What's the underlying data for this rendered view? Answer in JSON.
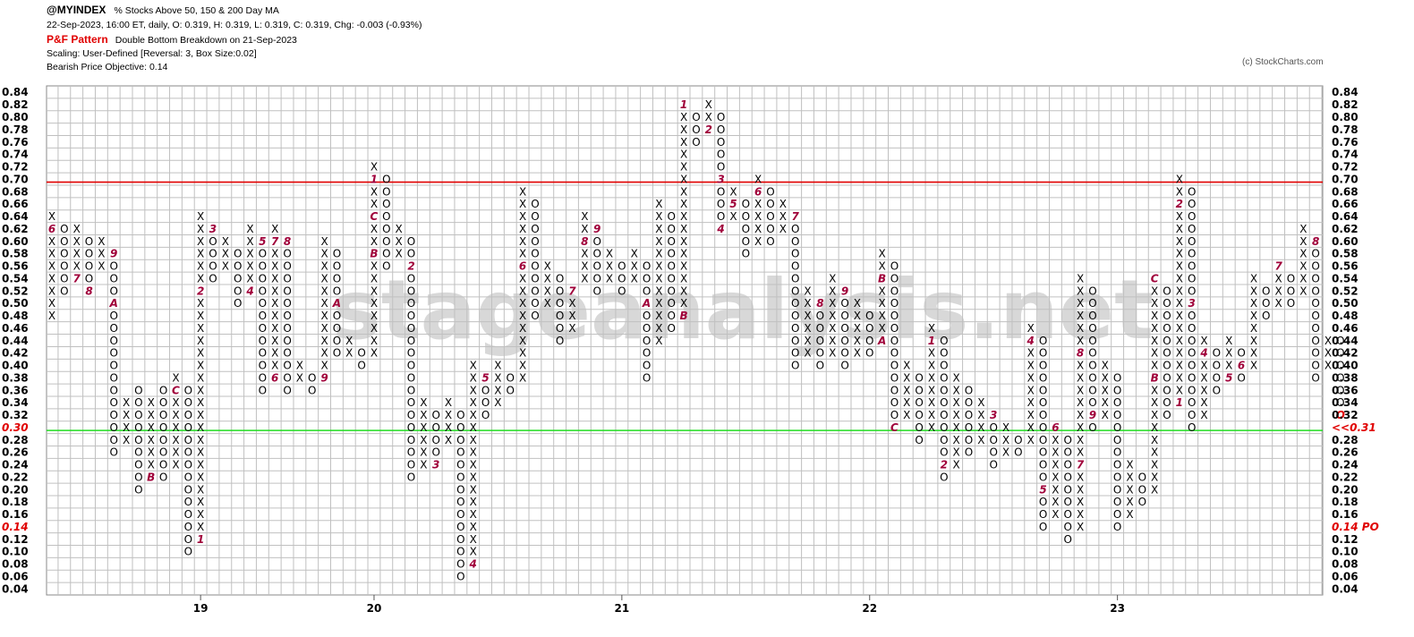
{
  "header": {
    "symbol": "@MYINDEX",
    "subtitle": "% Stocks Above 50, 150 & 200 Day MA",
    "quote": "22-Sep-2023, 16:00 ET, daily, O: 0.319, H: 0.319, L: 0.319, C: 0.319, Chg: -0.003 (-0.93%)",
    "pattern_label": "P&F Pattern",
    "pattern_text": "Double Bottom Breakdown on 21-Sep-2023",
    "scaling": "Scaling: User-Defined [Reversal: 3, Box Size:0.02]",
    "objective": "Bearish Price Objective: 0.14",
    "copyright": "(c) StockCharts.com"
  },
  "watermark": "stageanalysis.net",
  "colors": {
    "grid": "#c0c0c0",
    "mark": "#000000",
    "month": "#a0003a",
    "resistance": "#e00000",
    "support": "#22dd22",
    "highlight": "#e00000",
    "watermark": "#d8d8d8"
  },
  "chart_data": {
    "type": "point-and-figure",
    "box_size": 0.02,
    "reversal": 3,
    "ylim": [
      0.04,
      0.84
    ],
    "y_ticks_left": [
      "0.84",
      "0.82",
      "0.80",
      "0.78",
      "0.76",
      "0.74",
      "0.72",
      "0.70",
      "0.68",
      "0.66",
      "0.64",
      "0.62",
      "0.60",
      "0.58",
      "0.56",
      "0.54",
      "0.52",
      "0.50",
      "0.48",
      "0.46",
      "0.44",
      "0.42",
      "0.40",
      "0.38",
      "0.36",
      "0.34",
      "0.32",
      "0.30",
      "0.28",
      "0.26",
      "0.24",
      "0.22",
      "0.20",
      "0.18",
      "0.16",
      "0.14",
      "0.12",
      "0.10",
      "0.08",
      "0.06",
      "0.04"
    ],
    "y_ticks_right": [
      "0.84",
      "0.82",
      "0.80",
      "0.78",
      "0.76",
      "0.74",
      "0.72",
      "0.70",
      "0.68",
      "0.66",
      "0.64",
      "0.62",
      "0.60",
      "0.58",
      "0.56",
      "0.54",
      "0.52",
      "0.50",
      "0.48",
      "0.46",
      "0.44",
      "0.42",
      "0.40",
      "0.38",
      "0.36",
      "0.34",
      "0.32",
      "<<0.31",
      "0.28",
      "0.26",
      "0.24",
      "0.22",
      "0.20",
      "0.18",
      "0.16",
      "0.14 PO",
      "0.12",
      "0.10",
      "0.08",
      "0.06",
      "0.04"
    ],
    "y_tick_highlight_left": [
      "0.30",
      "0.14"
    ],
    "y_tick_highlight_right": [
      "<<0.31",
      "0.14 PO"
    ],
    "x_year_labels": [
      {
        "column": 12,
        "label": "19"
      },
      {
        "column": 26,
        "label": "20"
      },
      {
        "column": 46,
        "label": "21"
      },
      {
        "column": 66,
        "label": "22"
      },
      {
        "column": 86,
        "label": "23"
      }
    ],
    "horizontal_lines": [
      {
        "value": 0.695,
        "color": "resistance"
      },
      {
        "value": 0.295,
        "color": "support"
      }
    ],
    "columns": [
      {
        "col": 0,
        "t": "X",
        "lo": 0.48,
        "hi": 0.64,
        "m": {
          "0.62": "6"
        }
      },
      {
        "col": 1,
        "t": "O",
        "lo": 0.52,
        "hi": 0.62
      },
      {
        "col": 2,
        "t": "X",
        "lo": 0.54,
        "hi": 0.62,
        "m": {
          "0.54": "7"
        }
      },
      {
        "col": 3,
        "t": "O",
        "lo": 0.52,
        "hi": 0.6,
        "m": {
          "0.52": "8"
        }
      },
      {
        "col": 4,
        "t": "X",
        "lo": 0.56,
        "hi": 0.6
      },
      {
        "col": 5,
        "t": "O",
        "lo": 0.26,
        "hi": 0.58,
        "m": {
          "0.58": "9",
          "0.50": "A"
        }
      },
      {
        "col": 6,
        "t": "X",
        "lo": 0.28,
        "hi": 0.34
      },
      {
        "col": 7,
        "t": "O",
        "lo": 0.2,
        "hi": 0.36
      },
      {
        "col": 8,
        "t": "X",
        "lo": 0.22,
        "hi": 0.34,
        "m": {
          "0.22": "B"
        }
      },
      {
        "col": 9,
        "t": "O",
        "lo": 0.22,
        "hi": 0.36
      },
      {
        "col": 10,
        "t": "X",
        "lo": 0.24,
        "hi": 0.38,
        "m": {
          "0.36": "C"
        }
      },
      {
        "col": 11,
        "t": "O",
        "lo": 0.1,
        "hi": 0.36
      },
      {
        "col": 12,
        "t": "X",
        "lo": 0.12,
        "hi": 0.64,
        "m": {
          "0.12": "1",
          "0.52": "2"
        }
      },
      {
        "col": 13,
        "t": "O",
        "lo": 0.54,
        "hi": 0.62,
        "m": {
          "0.62": "3"
        }
      },
      {
        "col": 14,
        "t": "X",
        "lo": 0.56,
        "hi": 0.6
      },
      {
        "col": 15,
        "t": "O",
        "lo": 0.5,
        "hi": 0.58
      },
      {
        "col": 16,
        "t": "X",
        "lo": 0.52,
        "hi": 0.62,
        "m": {
          "0.52": "4"
        }
      },
      {
        "col": 17,
        "t": "O",
        "lo": 0.36,
        "hi": 0.6,
        "m": {
          "0.60": "5"
        }
      },
      {
        "col": 18,
        "t": "X",
        "lo": 0.38,
        "hi": 0.62,
        "m": {
          "0.38": "6",
          "0.60": "7"
        }
      },
      {
        "col": 19,
        "t": "O",
        "lo": 0.36,
        "hi": 0.6,
        "m": {
          "0.60": "8"
        }
      },
      {
        "col": 20,
        "t": "X",
        "lo": 0.38,
        "hi": 0.4
      },
      {
        "col": 21,
        "t": "O",
        "lo": 0.36,
        "hi": 0.38
      },
      {
        "col": 22,
        "t": "X",
        "lo": 0.38,
        "hi": 0.6,
        "m": {
          "0.38": "9"
        }
      },
      {
        "col": 23,
        "t": "O",
        "lo": 0.42,
        "hi": 0.58,
        "m": {
          "0.50": "A"
        }
      },
      {
        "col": 24,
        "t": "X",
        "lo": 0.42,
        "hi": 0.44
      },
      {
        "col": 25,
        "t": "O",
        "lo": 0.4,
        "hi": 0.42
      },
      {
        "col": 26,
        "t": "X",
        "lo": 0.42,
        "hi": 0.72,
        "m": {
          "0.58": "B",
          "0.64": "C",
          "0.70": "1"
        }
      },
      {
        "col": 27,
        "t": "O",
        "lo": 0.56,
        "hi": 0.7
      },
      {
        "col": 28,
        "t": "X",
        "lo": 0.58,
        "hi": 0.62,
        "m": {
          "0.56": "2"
        }
      },
      {
        "col": 29,
        "t": "O",
        "lo": 0.22,
        "hi": 0.6,
        "m": {
          "0.56": "2"
        }
      },
      {
        "col": 30,
        "t": "X",
        "lo": 0.24,
        "hi": 0.34
      },
      {
        "col": 31,
        "t": "O",
        "lo": 0.24,
        "hi": 0.32,
        "m": {
          "0.24": "3"
        }
      },
      {
        "col": 32,
        "t": "X",
        "lo": 0.28,
        "hi": 0.34
      },
      {
        "col": 33,
        "t": "O",
        "lo": 0.06,
        "hi": 0.32
      },
      {
        "col": 34,
        "t": "X",
        "lo": 0.08,
        "hi": 0.4,
        "m": {
          "0.08": "4"
        }
      },
      {
        "col": 35,
        "t": "O",
        "lo": 0.32,
        "hi": 0.38,
        "m": {
          "0.38": "5"
        }
      },
      {
        "col": 36,
        "t": "X",
        "lo": 0.34,
        "hi": 0.4
      },
      {
        "col": 37,
        "t": "O",
        "lo": 0.36,
        "hi": 0.38
      },
      {
        "col": 38,
        "t": "X",
        "lo": 0.38,
        "hi": 0.68,
        "m": {
          "0.56": "6"
        }
      },
      {
        "col": 39,
        "t": "O",
        "lo": 0.48,
        "hi": 0.66
      },
      {
        "col": 40,
        "t": "X",
        "lo": 0.5,
        "hi": 0.56
      },
      {
        "col": 41,
        "t": "O",
        "lo": 0.44,
        "hi": 0.54
      },
      {
        "col": 42,
        "t": "X",
        "lo": 0.46,
        "hi": 0.52,
        "m": {
          "0.52": "7"
        }
      },
      {
        "col": 43,
        "t": "X",
        "lo": 0.54,
        "hi": 0.64,
        "m": {
          "0.60": "8"
        }
      },
      {
        "col": 44,
        "t": "O",
        "lo": 0.52,
        "hi": 0.62,
        "m": {
          "0.62": "9"
        }
      },
      {
        "col": 45,
        "t": "X",
        "lo": 0.54,
        "hi": 0.58
      },
      {
        "col": 46,
        "t": "O",
        "lo": 0.52,
        "hi": 0.56
      },
      {
        "col": 47,
        "t": "X",
        "lo": 0.54,
        "hi": 0.58
      },
      {
        "col": 48,
        "t": "O",
        "lo": 0.38,
        "hi": 0.56,
        "m": {
          "0.50": "A"
        }
      },
      {
        "col": 49,
        "t": "X",
        "lo": 0.44,
        "hi": 0.66
      },
      {
        "col": 50,
        "t": "O",
        "lo": 0.46,
        "hi": 0.64
      },
      {
        "col": 51,
        "t": "X",
        "lo": 0.48,
        "hi": 0.82,
        "m": {
          "0.48": "B",
          "0.82": "1"
        }
      },
      {
        "col": 52,
        "t": "O",
        "lo": 0.76,
        "hi": 0.8
      },
      {
        "col": 53,
        "t": "X",
        "lo": 0.78,
        "hi": 0.82,
        "m": {
          "0.78": "2"
        }
      },
      {
        "col": 54,
        "t": "O",
        "lo": 0.62,
        "hi": 0.8,
        "m": {
          "0.70": "3",
          "0.62": "4"
        }
      },
      {
        "col": 55,
        "t": "X",
        "lo": 0.64,
        "hi": 0.68,
        "m": {
          "0.66": "5"
        }
      },
      {
        "col": 56,
        "t": "O",
        "lo": 0.58,
        "hi": 0.66
      },
      {
        "col": 57,
        "t": "X",
        "lo": 0.6,
        "hi": 0.7,
        "m": {
          "0.68": "6"
        }
      },
      {
        "col": 58,
        "t": "O",
        "lo": 0.6,
        "hi": 0.68
      },
      {
        "col": 59,
        "t": "X",
        "lo": 0.62,
        "hi": 0.66
      },
      {
        "col": 60,
        "t": "O",
        "lo": 0.4,
        "hi": 0.64,
        "m": {
          "0.64": "7"
        }
      },
      {
        "col": 61,
        "t": "X",
        "lo": 0.42,
        "hi": 0.52
      },
      {
        "col": 62,
        "t": "O",
        "lo": 0.4,
        "hi": 0.5,
        "m": {
          "0.50": "8"
        }
      },
      {
        "col": 63,
        "t": "X",
        "lo": 0.42,
        "hi": 0.54
      },
      {
        "col": 64,
        "t": "O",
        "lo": 0.4,
        "hi": 0.52,
        "m": {
          "0.52": "9"
        }
      },
      {
        "col": 65,
        "t": "X",
        "lo": 0.42,
        "hi": 0.5
      },
      {
        "col": 66,
        "t": "O",
        "lo": 0.42,
        "hi": 0.48
      },
      {
        "col": 67,
        "t": "X",
        "lo": 0.44,
        "hi": 0.58,
        "m": {
          "0.54": "B",
          "0.44": "A"
        }
      },
      {
        "col": 68,
        "t": "O",
        "lo": 0.3,
        "hi": 0.56,
        "m": {
          "0.30": "C"
        }
      },
      {
        "col": 69,
        "t": "X",
        "lo": 0.32,
        "hi": 0.4
      },
      {
        "col": 70,
        "t": "O",
        "lo": 0.28,
        "hi": 0.38
      },
      {
        "col": 71,
        "t": "X",
        "lo": 0.3,
        "hi": 0.46,
        "m": {
          "0.44": "1"
        }
      },
      {
        "col": 72,
        "t": "O",
        "lo": 0.22,
        "hi": 0.44,
        "m": {
          "0.24": "2"
        }
      },
      {
        "col": 73,
        "t": "X",
        "lo": 0.24,
        "hi": 0.38
      },
      {
        "col": 74,
        "t": "O",
        "lo": 0.26,
        "hi": 0.36
      },
      {
        "col": 75,
        "t": "X",
        "lo": 0.28,
        "hi": 0.34
      },
      {
        "col": 76,
        "t": "O",
        "lo": 0.24,
        "hi": 0.32,
        "m": {
          "0.32": "3"
        }
      },
      {
        "col": 77,
        "t": "X",
        "lo": 0.26,
        "hi": 0.3
      },
      {
        "col": 78,
        "t": "O",
        "lo": 0.26,
        "hi": 0.28
      },
      {
        "col": 79,
        "t": "X",
        "lo": 0.28,
        "hi": 0.46,
        "m": {
          "0.44": "4"
        }
      },
      {
        "col": 80,
        "t": "O",
        "lo": 0.14,
        "hi": 0.44,
        "m": {
          "0.20": "5"
        }
      },
      {
        "col": 81,
        "t": "X",
        "lo": 0.16,
        "hi": 0.3,
        "m": {
          "0.30": "6"
        }
      },
      {
        "col": 82,
        "t": "O",
        "lo": 0.12,
        "hi": 0.28
      },
      {
        "col": 83,
        "t": "X",
        "lo": 0.14,
        "hi": 0.54,
        "m": {
          "0.24": "7",
          "0.42": "8"
        }
      },
      {
        "col": 84,
        "t": "O",
        "lo": 0.3,
        "hi": 0.52,
        "m": {
          "0.32": "9"
        }
      },
      {
        "col": 85,
        "t": "X",
        "lo": 0.32,
        "hi": 0.4
      },
      {
        "col": 86,
        "t": "O",
        "lo": 0.14,
        "hi": 0.38
      },
      {
        "col": 87,
        "t": "X",
        "lo": 0.16,
        "hi": 0.24
      },
      {
        "col": 88,
        "t": "O",
        "lo": 0.18,
        "hi": 0.22,
        "m": {
          "0.16": "A"
        }
      },
      {
        "col": 89,
        "t": "X",
        "lo": 0.2,
        "hi": 0.54,
        "m": {
          "0.38": "B",
          "0.54": "C"
        }
      },
      {
        "col": 90,
        "t": "O",
        "lo": 0.32,
        "hi": 0.52
      },
      {
        "col": 91,
        "t": "X",
        "lo": 0.34,
        "hi": 0.7,
        "m": {
          "0.66": "2",
          "0.34": "1"
        }
      },
      {
        "col": 92,
        "t": "O",
        "lo": 0.3,
        "hi": 0.68,
        "m": {
          "0.50": "3"
        }
      },
      {
        "col": 93,
        "t": "X",
        "lo": 0.32,
        "hi": 0.44,
        "m": {
          "0.42": "4"
        }
      },
      {
        "col": 94,
        "t": "O",
        "lo": 0.36,
        "hi": 0.42
      },
      {
        "col": 95,
        "t": "X",
        "lo": 0.38,
        "hi": 0.44,
        "m": {
          "0.38": "5"
        }
      },
      {
        "col": 96,
        "t": "O",
        "lo": 0.38,
        "hi": 0.42,
        "m": {
          "0.40": "6"
        }
      },
      {
        "col": 97,
        "t": "X",
        "lo": 0.4,
        "hi": 0.54
      },
      {
        "col": 98,
        "t": "O",
        "lo": 0.48,
        "hi": 0.52
      },
      {
        "col": 99,
        "t": "X",
        "lo": 0.5,
        "hi": 0.56,
        "m": {
          "0.56": "7"
        }
      },
      {
        "col": 100,
        "t": "O",
        "lo": 0.5,
        "hi": 0.54
      },
      {
        "col": 101,
        "t": "X",
        "lo": 0.52,
        "hi": 0.62
      },
      {
        "col": 102,
        "t": "O",
        "lo": 0.38,
        "hi": 0.6,
        "m": {
          "0.60": "8"
        }
      },
      {
        "col": 103,
        "t": "X",
        "lo": 0.4,
        "hi": 0.44,
        "m": {
          "0.46": "9"
        }
      },
      {
        "col": 104,
        "t": "O",
        "lo": 0.32,
        "hi": 0.44,
        "m": {
          "0.32": "O"
        }
      }
    ]
  }
}
